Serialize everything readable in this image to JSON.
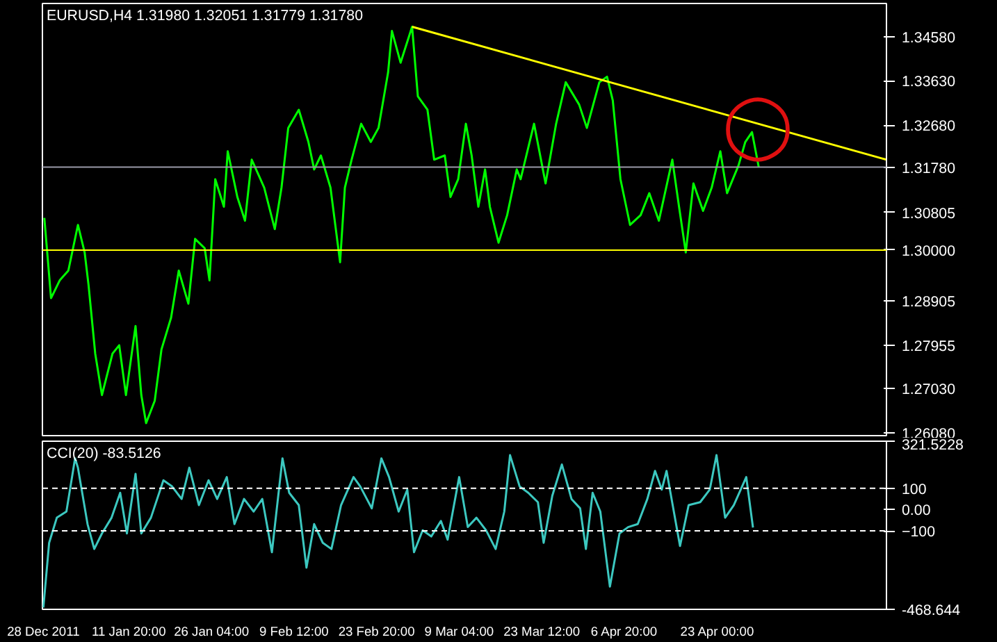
{
  "chart_data": [
    {
      "type": "line",
      "title": "EURUSD,H4  1.31980 1.32051 1.31779 1.31780",
      "xlim": [
        "2011-12-27T20:00",
        "2012-05-22T08:00"
      ],
      "ylim": [
        1.2602,
        1.3529
      ],
      "yticks": [
        {
          "value": 1.3458,
          "label": "1.34580"
        },
        {
          "value": 1.3363,
          "label": "1.33630"
        },
        {
          "value": 1.3268,
          "label": "1.32680"
        },
        {
          "value": 1.30805,
          "label": "1.30805"
        },
        {
          "value": 1.28905,
          "label": "1.28905"
        },
        {
          "value": 1.27955,
          "label": "1.27955"
        },
        {
          "value": 1.2703,
          "label": "1.27030"
        },
        {
          "value": 1.2608,
          "label": "1.26080"
        }
      ],
      "tick_labels": "y",
      "grid": false,
      "series": [
        {
          "color": "#00ff00",
          "x": [
            "2011-12-28T04:00",
            "2011-12-29T08:00",
            "2011-12-30T20:00",
            "2012-01-01T08:00",
            "2012-01-03T00:00",
            "2012-01-04T04:00",
            "2012-01-04T20:00",
            "2012-01-06T00:00",
            "2012-01-07T04:00",
            "2012-01-09T00:00",
            "2012-01-10T04:00",
            "2012-01-11T08:00",
            "2012-01-13T00:00",
            "2012-01-14T00:00",
            "2012-01-14T20:00",
            "2012-01-16T08:00",
            "2012-01-17T12:00",
            "2012-01-19T04:00",
            "2012-01-20T12:00",
            "2012-01-22T04:00",
            "2012-01-23T08:00",
            "2012-01-25T00:00",
            "2012-01-25T20:00",
            "2012-01-26T20:00",
            "2012-01-28T08:00",
            "2012-01-29T00:00",
            "2012-01-30T16:00",
            "2012-02-01T00:00",
            "2012-02-02T04:00",
            "2012-02-04T08:00",
            "2012-02-06T04:00",
            "2012-02-07T08:00",
            "2012-02-08T12:00",
            "2012-02-10T08:00",
            "2012-02-12T00:00",
            "2012-02-13T00:00",
            "2012-02-14T04:00",
            "2012-02-15T20:00",
            "2012-02-17T12:00",
            "2012-02-18T08:00",
            "2012-02-19T12:00",
            "2012-02-21T04:00",
            "2012-02-22T20:00",
            "2012-02-24T04:00",
            "2012-02-25T20:00",
            "2012-02-26T12:00",
            "2012-02-28T00:00",
            "2012-03-01T00:00",
            "2012-03-02T00:00",
            "2012-03-03T16:00",
            "2012-03-04T20:00",
            "2012-03-06T16:00",
            "2012-03-07T16:00",
            "2012-03-09T00:00",
            "2012-03-10T08:00",
            "2012-03-11T08:00",
            "2012-03-12T12:00",
            "2012-03-13T16:00",
            "2012-03-14T12:00",
            "2012-03-16T00:00",
            "2012-03-17T12:00",
            "2012-03-19T04:00",
            "2012-03-19T20:00",
            "2012-03-22T04:00",
            "2012-03-24T04:00",
            "2012-03-26T00:00",
            "2012-03-27T16:00",
            "2012-03-30T00:00",
            "2012-03-31T08:00",
            "2012-04-02T12:00",
            "2012-04-03T20:00",
            "2012-04-04T20:00",
            "2012-04-06T04:00",
            "2012-04-07T20:00",
            "2012-04-09T16:00",
            "2012-04-11T04:00",
            "2012-04-12T20:00",
            "2012-04-15T04:00",
            "2012-04-16T08:00",
            "2012-04-17T12:00",
            "2012-04-18T20:00",
            "2012-04-20T12:00",
            "2012-04-22T00:00",
            "2012-04-23T12:00",
            "2012-04-24T16:00",
            "2012-04-26T16:00",
            "2012-04-27T20:00",
            "2012-04-29T00:00",
            "2012-04-30T04:00"
          ],
          "values": [
            1.3069,
            1.2897,
            1.2935,
            1.2956,
            1.3054,
            1.2995,
            1.2926,
            1.2778,
            1.2689,
            1.2778,
            1.2796,
            1.2689,
            1.2837,
            1.2689,
            1.2629,
            1.2677,
            1.2787,
            1.2855,
            1.2956,
            1.2885,
            1.3024,
            1.3004,
            1.2935,
            1.3152,
            1.3093,
            1.3212,
            1.3114,
            1.3063,
            1.3194,
            1.3134,
            1.3045,
            1.3134,
            1.3262,
            1.3301,
            1.3232,
            1.3173,
            1.3203,
            1.3134,
            1.2974,
            1.3134,
            1.3194,
            1.3271,
            1.3232,
            1.3262,
            1.3381,
            1.347,
            1.3402,
            1.3479,
            1.333,
            1.3301,
            1.3194,
            1.3203,
            1.3114,
            1.3152,
            1.3271,
            1.3203,
            1.3093,
            1.3173,
            1.3093,
            1.3016,
            1.3075,
            1.3173,
            1.3152,
            1.3271,
            1.3143,
            1.3271,
            1.336,
            1.3312,
            1.3262,
            1.336,
            1.3372,
            1.3321,
            1.3152,
            1.3054,
            1.3075,
            1.3122,
            1.3063,
            1.3194,
            1.3093,
            1.2995,
            1.3143,
            1.3084,
            1.3134,
            1.3212,
            1.3122,
            1.3182,
            1.3232,
            1.3253,
            1.3178
          ]
        },
        {
          "color": "#ffff00",
          "x": [
            "2012-03-01T00:00",
            "2012-05-22T08:00"
          ],
          "values": [
            1.3479,
            1.3194
          ]
        }
      ],
      "ref_lines": [
        {
          "axis": "y",
          "value": 1.3178,
          "label": "1.31780",
          "color": "#9a9aa8"
        },
        {
          "axis": "y",
          "value": 1.3,
          "label": "1.30000",
          "color": "#ffff00"
        }
      ],
      "annotations": [
        {
          "text": "◯",
          "x": "2012-04-30T00:00",
          "y": 1.327
        }
      ]
    },
    {
      "type": "line",
      "title": "CCI(20) -83.5126",
      "xlim": [
        "2011-12-27T20:00",
        "2012-05-22T08:00"
      ],
      "ylim": [
        -468.644,
        321.5228
      ],
      "yticks": [
        {
          "value": 321.5228,
          "label": "321.5228"
        },
        100,
        {
          "value": 0,
          "label": "0.00"
        },
        -100,
        {
          "value": -468.644,
          "label": "-468.644"
        }
      ],
      "xticks": [
        {
          "value": "2011-12-28T00:00",
          "label": "28 Dec 2011"
        },
        {
          "value": "2012-01-11T20:00",
          "label": "11 Jan 20:00"
        },
        {
          "value": "2012-01-26T04:00",
          "label": "26 Jan 04:00"
        },
        {
          "value": "2012-02-09T12:00",
          "label": "9 Feb 12:00"
        },
        {
          "value": "2012-02-23T20:00",
          "label": "23 Feb 20:00"
        },
        {
          "value": "2012-03-09T04:00",
          "label": "9 Mar 04:00"
        },
        {
          "value": "2012-03-23T12:00",
          "label": "23 Mar 12:00"
        },
        {
          "value": "2012-04-06T20:00",
          "label": "6 Apr 20:00"
        },
        {
          "value": "2012-04-23T00:00",
          "label": "23 Apr 00:00"
        }
      ],
      "grid": false,
      "series": [
        {
          "color": "#3cc8c0",
          "x": [
            "2011-12-28T00:00",
            "2011-12-29T00:00",
            "2011-12-30T08:00",
            "2012-01-01T00:00",
            "2012-01-02T12:00",
            "2012-01-03T00:00",
            "2012-01-04T16:00",
            "2012-01-05T20:00",
            "2012-01-07T04:00",
            "2012-01-08T20:00",
            "2012-01-10T08:00",
            "2012-01-11T12:00",
            "2012-01-13T00:00",
            "2012-01-14T00:00",
            "2012-01-15T16:00",
            "2012-01-17T20:00",
            "2012-01-19T08:00",
            "2012-01-21T00:00",
            "2012-01-22T08:00",
            "2012-01-24T00:00",
            "2012-01-25T16:00",
            "2012-01-27T04:00",
            "2012-01-28T20:00",
            "2012-01-30T04:00",
            "2012-01-31T20:00",
            "2012-02-02T12:00",
            "2012-02-04T00:00",
            "2012-02-05T16:00",
            "2012-02-07T12:00",
            "2012-02-08T16:00",
            "2012-02-10T08:00",
            "2012-02-11T16:00",
            "2012-02-13T00:00",
            "2012-02-14T12:00",
            "2012-02-16T00:00",
            "2012-02-17T16:00",
            "2012-02-19T20:00",
            "2012-02-21T00:00",
            "2012-02-23T00:00",
            "2012-02-24T16:00",
            "2012-02-26T00:00",
            "2012-02-27T16:00",
            "2012-02-29T04:00",
            "2012-03-01T08:00",
            "2012-03-02T20:00",
            "2012-03-04T08:00",
            "2012-03-06T00:00",
            "2012-03-07T04:00",
            "2012-03-09T04:00",
            "2012-03-10T16:00",
            "2012-03-12T04:00",
            "2012-03-13T20:00",
            "2012-03-15T12:00",
            "2012-03-17T00:00",
            "2012-03-18T00:00",
            "2012-03-19T16:00",
            "2012-03-21T04:00",
            "2012-03-22T20:00",
            "2012-03-23T20:00",
            "2012-03-25T08:00",
            "2012-03-27T00:00",
            "2012-03-28T16:00",
            "2012-03-30T04:00",
            "2012-03-31T04:00",
            "2012-04-01T08:00",
            "2012-04-02T16:00",
            "2012-04-04T08:00",
            "2012-04-06T00:00",
            "2012-04-07T12:00",
            "2012-04-09T04:00",
            "2012-04-10T20:00",
            "2012-04-12T04:00",
            "2012-04-13T08:00",
            "2012-04-14T04:00",
            "2012-04-16T12:00",
            "2012-04-18T00:00",
            "2012-04-20T00:00",
            "2012-04-21T16:00",
            "2012-04-22T20:00",
            "2012-04-24T08:00",
            "2012-04-25T20:00",
            "2012-04-28T00:00",
            "2012-04-29T04:00"
          ],
          "values": [
            -460,
            -156,
            -38,
            -9,
            241,
            197,
            -68,
            -185,
            -112,
            -38,
            79,
            -112,
            168,
            -112,
            -38,
            138,
            109,
            50,
            197,
            21,
            138,
            50,
            153,
            -68,
            50,
            -9,
            50,
            -200,
            241,
            79,
            21,
            -273,
            -68,
            -156,
            -185,
            21,
            153,
            109,
            6,
            241,
            153,
            -9,
            94,
            -200,
            -97,
            -126,
            -53,
            -141,
            153,
            -82,
            -38,
            -97,
            -185,
            -9,
            256,
            109,
            79,
            35,
            -156,
            65,
            212,
            50,
            6,
            -185,
            79,
            -9,
            -362,
            -112,
            -82,
            -68,
            50,
            182,
            94,
            182,
            -171,
            21,
            35,
            94,
            256,
            -38,
            21,
            153,
            -84
          ]
        }
      ],
      "ref_lines": [
        {
          "axis": "y",
          "value": 100,
          "color": "#ffffff",
          "line_style": "dashed"
        },
        {
          "axis": "y",
          "value": -100,
          "color": "#ffffff",
          "line_style": "dashed"
        }
      ]
    }
  ]
}
